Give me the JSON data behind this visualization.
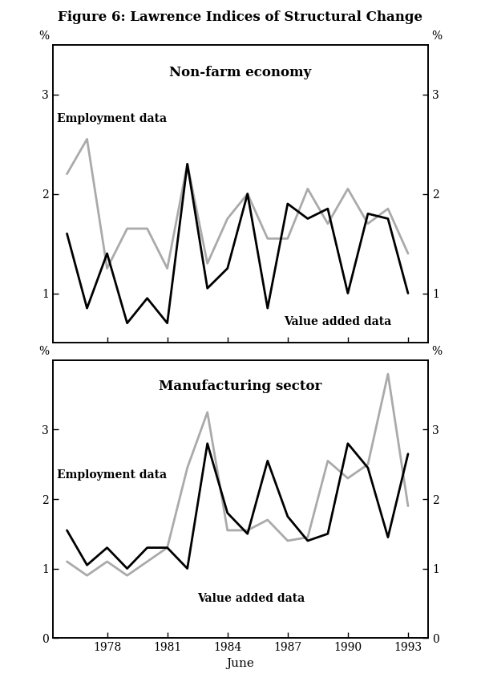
{
  "title": "Figure 6: Lawrence Indices of Structural Change",
  "xlabel": "June",
  "panel1_title": "Non-farm economy",
  "panel2_title": "Manufacturing sector",
  "label_employment": "Employment data",
  "label_value_added": "Value added data",
  "ylabel_left": "%",
  "ylabel_right": "%",
  "years": [
    1976,
    1977,
    1978,
    1979,
    1980,
    1981,
    1982,
    1983,
    1984,
    1985,
    1986,
    1987,
    1988,
    1989,
    1990,
    1991,
    1992,
    1993
  ],
  "nonfarm_employment": [
    1.6,
    0.85,
    1.4,
    0.7,
    0.95,
    0.7,
    2.3,
    1.05,
    1.25,
    2.0,
    0.85,
    1.9,
    1.75,
    1.85,
    1.0,
    1.8,
    1.75,
    1.0
  ],
  "nonfarm_valueadded": [
    2.2,
    2.55,
    1.25,
    1.65,
    1.65,
    1.25,
    2.3,
    1.3,
    1.75,
    2.0,
    1.55,
    1.55,
    2.05,
    1.7,
    2.05,
    1.7,
    1.85,
    1.4
  ],
  "manuf_employment": [
    1.55,
    1.05,
    1.3,
    1.0,
    1.3,
    1.3,
    1.0,
    2.8,
    1.8,
    1.5,
    2.55,
    1.75,
    1.4,
    1.5,
    2.8,
    2.45,
    1.45,
    2.65
  ],
  "manuf_valueadded": [
    1.1,
    0.9,
    1.1,
    0.9,
    1.1,
    1.3,
    2.45,
    3.25,
    1.55,
    1.55,
    1.7,
    1.4,
    1.45,
    2.55,
    2.3,
    2.5,
    3.8,
    1.9
  ],
  "panel1_ylim": [
    0.5,
    3.5
  ],
  "panel2_ylim": [
    0.0,
    4.0
  ],
  "panel1_yticks": [
    1,
    2,
    3
  ],
  "panel2_yticks": [
    0,
    1,
    2,
    3
  ],
  "xticks": [
    1978,
    1981,
    1984,
    1987,
    1990,
    1993
  ],
  "xlim": [
    1975.3,
    1994.0
  ],
  "employment_color": "#000000",
  "valueadded_color": "#aaaaaa",
  "linewidth": 2.0,
  "background_color": "#ffffff",
  "title_fontsize": 12,
  "panel_title_fontsize": 12,
  "annot_fontsize": 10,
  "tick_fontsize": 10,
  "xlabel_fontsize": 11,
  "pct_fontsize": 10
}
